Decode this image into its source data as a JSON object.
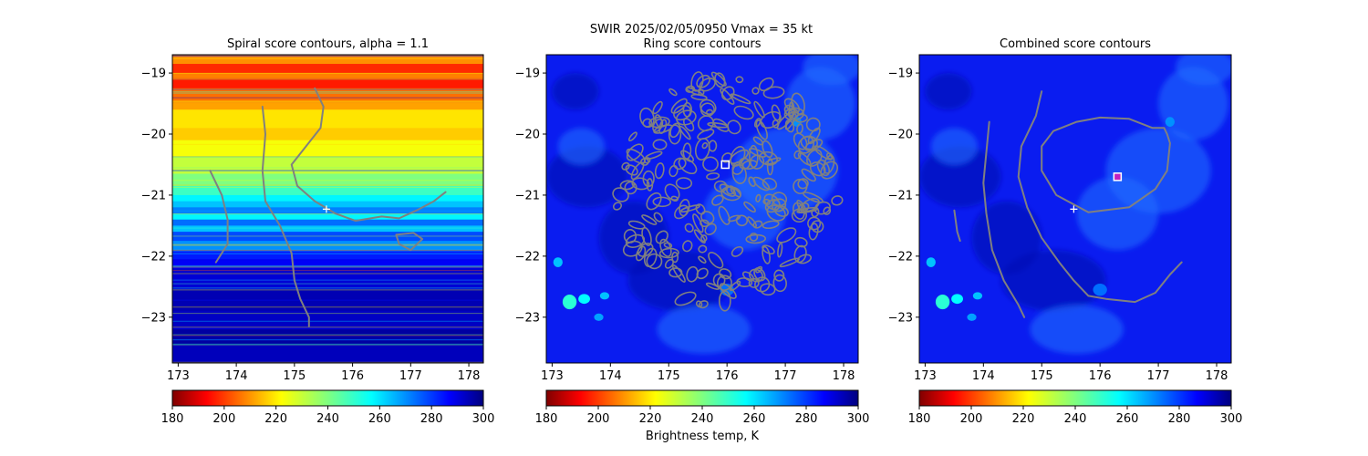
{
  "figure": {
    "suptitle_line1": "SWIR  2025/02/05/0950    Vmax = 35 kt"
  },
  "chart_data": [
    {
      "type": "heatmap",
      "panel": "spiral",
      "title": "Spiral score contours, alpha =  1.1",
      "xlim": [
        172.9,
        178.25
      ],
      "ylim": [
        -23.75,
        -18.7
      ],
      "xticks": [
        173,
        174,
        175,
        176,
        177,
        178
      ],
      "yticks": [
        -19,
        -20,
        -21,
        -22,
        -23
      ],
      "colormap": "jet_r",
      "colorbar": {
        "range": [
          180,
          300
        ],
        "ticks": [
          180,
          200,
          220,
          240,
          260,
          280,
          300
        ],
        "label": ""
      },
      "center_marker": {
        "x": 175.55,
        "y": -21.23,
        "symbol": "+"
      },
      "contours": [
        [
          [
            173.55,
            -20.6
          ],
          [
            173.75,
            -21.0
          ],
          [
            173.85,
            -21.4
          ],
          [
            173.85,
            -21.8
          ],
          [
            173.65,
            -22.1
          ]
        ],
        [
          [
            174.45,
            -19.55
          ],
          [
            174.5,
            -20.0
          ],
          [
            174.45,
            -20.6
          ],
          [
            174.5,
            -21.1
          ],
          [
            174.75,
            -21.5
          ],
          [
            174.95,
            -21.95
          ],
          [
            175.0,
            -22.4
          ],
          [
            175.1,
            -22.7
          ],
          [
            175.25,
            -23.0
          ],
          [
            175.25,
            -23.15
          ]
        ],
        [
          [
            175.35,
            -19.25
          ],
          [
            175.5,
            -19.55
          ],
          [
            175.45,
            -19.9
          ],
          [
            175.2,
            -20.2
          ],
          [
            174.95,
            -20.5
          ],
          [
            175.05,
            -20.85
          ],
          [
            175.35,
            -21.1
          ],
          [
            175.7,
            -21.3
          ],
          [
            176.05,
            -21.42
          ],
          [
            176.5,
            -21.35
          ],
          [
            176.8,
            -21.38
          ],
          [
            177.1,
            -21.25
          ],
          [
            177.4,
            -21.1
          ],
          [
            177.6,
            -20.95
          ]
        ],
        [
          [
            176.75,
            -21.65
          ],
          [
            177.05,
            -21.62
          ],
          [
            177.2,
            -21.72
          ],
          [
            177.0,
            -21.9
          ],
          [
            176.8,
            -21.8
          ],
          [
            176.75,
            -21.65
          ]
        ]
      ]
    },
    {
      "type": "heatmap",
      "panel": "ring",
      "title": "Ring score contours",
      "xlim": [
        172.9,
        178.25
      ],
      "ylim": [
        -23.75,
        -18.7
      ],
      "xticks": [
        173,
        174,
        175,
        176,
        177,
        178
      ],
      "yticks": [
        -19,
        -20,
        -21,
        -22,
        -23
      ],
      "colormap": "jet_r",
      "colorbar": {
        "range": [
          180,
          300
        ],
        "ticks": [
          180,
          200,
          220,
          240,
          260,
          280,
          300
        ],
        "label": "Brightness temp, K"
      },
      "center_marker": {
        "x": 175.97,
        "y": -20.5,
        "symbol": "square"
      },
      "contour_region": {
        "center_x": 176.0,
        "center_y": -20.95,
        "radius_x": 1.9,
        "radius_y": 1.9
      }
    },
    {
      "type": "heatmap",
      "panel": "combined",
      "title": "Combined score contours",
      "xlim": [
        172.9,
        178.25
      ],
      "ylim": [
        -23.75,
        -18.7
      ],
      "xticks": [
        173,
        174,
        175,
        176,
        177,
        178
      ],
      "yticks": [
        -19,
        -20,
        -21,
        -22,
        -23
      ],
      "colormap": "jet_r",
      "colorbar": {
        "range": [
          180,
          300
        ],
        "ticks": [
          180,
          200,
          220,
          240,
          260,
          280,
          300
        ],
        "label": ""
      },
      "center_marker": {
        "x": 175.55,
        "y": -21.23,
        "symbol": "+"
      },
      "best_marker": {
        "x": 176.3,
        "y": -20.7,
        "symbol": "square"
      },
      "contours": [
        [
          [
            173.5,
            -21.25
          ],
          [
            173.55,
            -21.6
          ],
          [
            173.6,
            -21.75
          ]
        ],
        [
          [
            174.1,
            -19.8
          ],
          [
            174.05,
            -20.3
          ],
          [
            174.0,
            -20.8
          ],
          [
            174.05,
            -21.3
          ],
          [
            174.15,
            -21.9
          ],
          [
            174.35,
            -22.4
          ],
          [
            174.6,
            -22.8
          ],
          [
            174.7,
            -23.0
          ]
        ],
        [
          [
            175.0,
            -19.3
          ],
          [
            174.9,
            -19.7
          ],
          [
            174.65,
            -20.2
          ],
          [
            174.6,
            -20.7
          ],
          [
            174.75,
            -21.2
          ],
          [
            175.0,
            -21.7
          ],
          [
            175.3,
            -22.1
          ],
          [
            175.55,
            -22.4
          ],
          [
            175.8,
            -22.65
          ],
          [
            176.1,
            -22.7
          ],
          [
            176.6,
            -22.75
          ],
          [
            176.95,
            -22.6
          ],
          [
            177.2,
            -22.3
          ],
          [
            177.4,
            -22.1
          ]
        ],
        [
          [
            175.0,
            -20.2
          ],
          [
            175.2,
            -19.95
          ],
          [
            175.6,
            -19.8
          ],
          [
            176.0,
            -19.73
          ],
          [
            176.5,
            -19.75
          ],
          [
            176.9,
            -19.9
          ],
          [
            177.1,
            -19.9
          ],
          [
            177.15,
            -20.0
          ],
          [
            177.2,
            -20.15
          ],
          [
            177.15,
            -20.6
          ],
          [
            176.95,
            -20.9
          ],
          [
            176.5,
            -21.2
          ],
          [
            175.8,
            -21.28
          ],
          [
            175.25,
            -21.0
          ],
          [
            175.0,
            -20.6
          ],
          [
            175.0,
            -20.2
          ]
        ]
      ]
    }
  ]
}
